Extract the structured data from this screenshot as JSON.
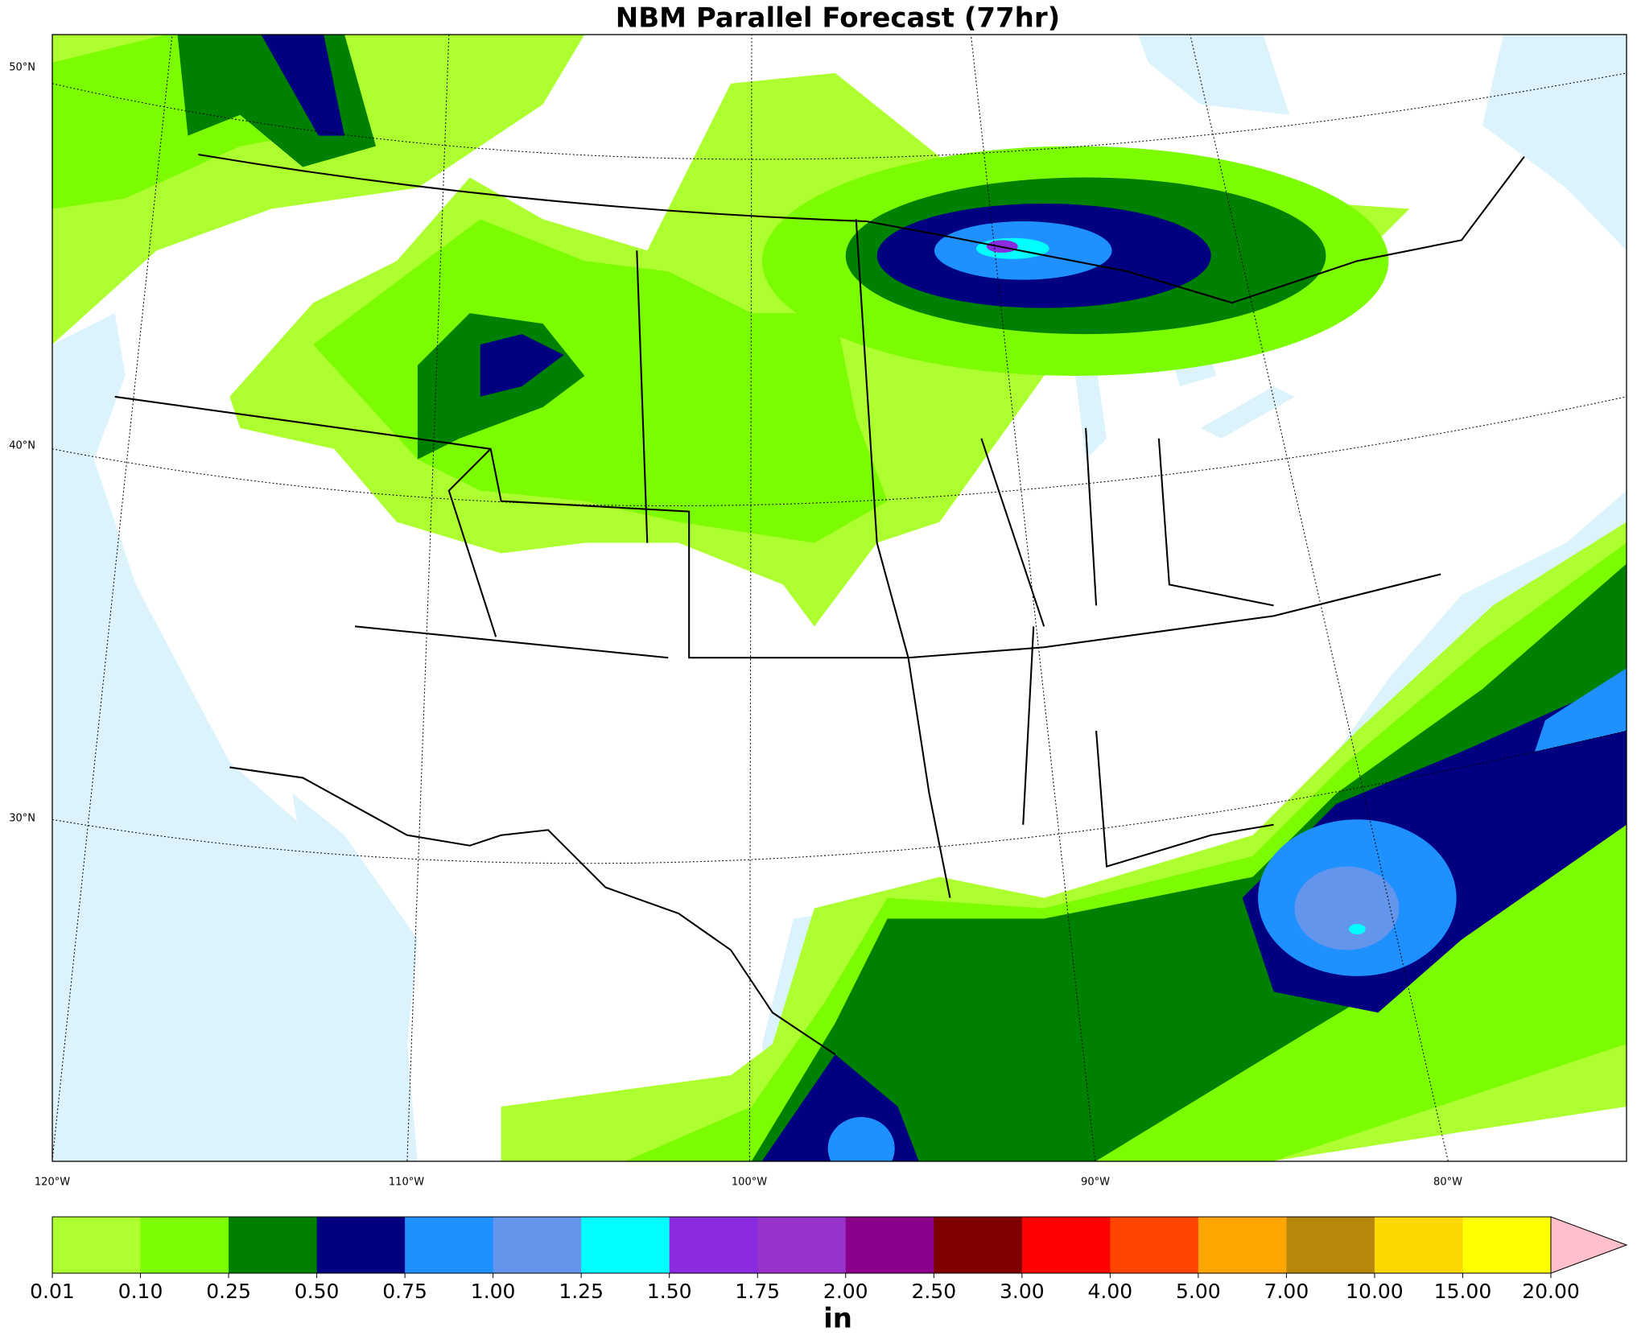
{
  "title": "NBM Parallel Forecast (77hr)",
  "map": {
    "lat_labels": [
      "50°N",
      "40°N",
      "30°N"
    ],
    "lon_labels": [
      "120°W",
      "110°W",
      "100°W",
      "90°W",
      "80°W"
    ],
    "ocean_color": "#dcf3fc"
  },
  "colorbar": {
    "ticks": [
      "0.01",
      "0.10",
      "0.25",
      "0.50",
      "0.75",
      "1.00",
      "1.25",
      "1.50",
      "1.75",
      "2.00",
      "2.50",
      "3.00",
      "4.00",
      "5.00",
      "7.00",
      "10.00",
      "15.00",
      "20.00"
    ],
    "colors": [
      "#adff2f",
      "#7cfc00",
      "#008000",
      "#000080",
      "#1e90ff",
      "#6495ed",
      "#00ffff",
      "#8a2be2",
      "#9932cc",
      "#8b008b",
      "#800000",
      "#ff0000",
      "#ff4500",
      "#ffa500",
      "#b8860b",
      "#ffd700",
      "#ffff00"
    ],
    "extend_color": "#ffc0cb",
    "unit": "in"
  }
}
